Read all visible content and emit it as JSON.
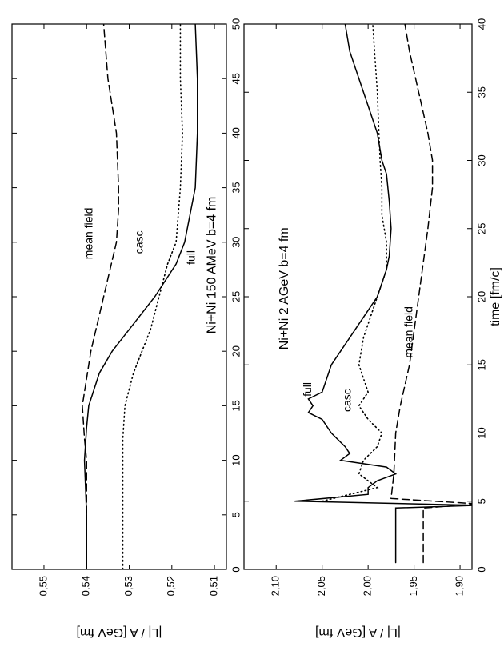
{
  "chart_data": [
    {
      "type": "line",
      "title": "Ni+Ni  150 AMeV  b=4 fm",
      "ylabel": "|L| / A   [GeV fm]",
      "xlim": [
        0,
        50
      ],
      "xticks": [
        0,
        5,
        10,
        15,
        20,
        25,
        30,
        35,
        40,
        45,
        50
      ],
      "ylim": [
        0.5072,
        0.5575
      ],
      "yticks": [
        {
          "value": 0.51,
          "label": "0,51"
        },
        {
          "value": 0.52,
          "label": "0,52"
        },
        {
          "value": 0.53,
          "label": "0,53"
        },
        {
          "value": 0.54,
          "label": "0,54"
        },
        {
          "value": 0.55,
          "label": "0,55"
        }
      ],
      "series": [
        {
          "name": "mean field",
          "color": "#000",
          "style": "dashed",
          "x": [
            0,
            5,
            10,
            12,
            15,
            20,
            25,
            30,
            33,
            35,
            40,
            45,
            50
          ],
          "values": [
            0.54,
            0.54,
            0.54,
            0.5405,
            0.541,
            0.539,
            0.536,
            0.533,
            0.5325,
            0.5325,
            0.533,
            0.535,
            0.536
          ]
        },
        {
          "name": "casc",
          "color": "#000",
          "style": "dotted",
          "x": [
            0,
            5,
            12,
            15,
            18,
            20,
            22,
            25,
            28,
            30,
            35,
            40,
            45,
            50
          ],
          "values": [
            0.5315,
            0.5315,
            0.5315,
            0.531,
            0.529,
            0.527,
            0.525,
            0.523,
            0.521,
            0.519,
            0.518,
            0.5175,
            0.518,
            0.518
          ]
        },
        {
          "name": "full",
          "color": "#000",
          "style": "solid",
          "x": [
            0,
            5,
            10,
            13,
            15,
            18,
            20,
            22,
            25,
            28,
            30,
            33,
            35,
            40,
            45,
            50
          ],
          "values": [
            0.54,
            0.54,
            0.5405,
            0.54,
            0.5395,
            0.537,
            0.534,
            0.53,
            0.524,
            0.519,
            0.517,
            0.5155,
            0.5145,
            0.514,
            0.514,
            0.5145
          ]
        }
      ]
    },
    {
      "type": "line",
      "title": "Ni+Ni  2 AGeV  b=4 fm",
      "ylabel": "|L| / A   [GeV fm]",
      "xlabel": "time  [fm/c]",
      "xlim": [
        0,
        40
      ],
      "xticks": [
        0,
        5,
        10,
        15,
        20,
        25,
        30,
        35,
        40
      ],
      "ylim": [
        1.887,
        2.135
      ],
      "yticks": [
        {
          "value": 1.9,
          "label": "1,90"
        },
        {
          "value": 1.95,
          "label": "1,95"
        },
        {
          "value": 2.0,
          "label": "2,00"
        },
        {
          "value": 2.05,
          "label": "2,05"
        },
        {
          "value": 2.1,
          "label": "2,10"
        }
      ],
      "series": [
        {
          "name": "full",
          "color": "#000",
          "style": "solid",
          "x": [
            0.5,
            4.5,
            4.7,
            5,
            5.5,
            6,
            6.5,
            7,
            7.5,
            8,
            8.5,
            9,
            10,
            11,
            11.5,
            12,
            12.5,
            13,
            14,
            15,
            16,
            17,
            18,
            19,
            20,
            21,
            22,
            23,
            25,
            27,
            29,
            30,
            32,
            34,
            36,
            38,
            40
          ],
          "values": [
            1.97,
            1.97,
            1.88,
            2.08,
            2.0,
            2.0,
            1.99,
            1.97,
            1.98,
            2.03,
            2.02,
            2.025,
            2.04,
            2.05,
            2.065,
            2.06,
            2.065,
            2.05,
            2.045,
            2.04,
            2.03,
            2.02,
            2.01,
            2.0,
            1.99,
            1.985,
            1.98,
            1.977,
            1.975,
            1.977,
            1.98,
            1.985,
            1.99,
            2.0,
            2.01,
            2.02,
            2.025
          ]
        },
        {
          "name": "casc",
          "color": "#000",
          "style": "dotted",
          "x": [
            5,
            5.5,
            6,
            6.5,
            7,
            8,
            9,
            10,
            11,
            12,
            13,
            14,
            15,
            17,
            20,
            22,
            24,
            26,
            28,
            30,
            35,
            40
          ],
          "values": [
            2.05,
            2.02,
            1.99,
            2.0,
            2.01,
            2.005,
            1.99,
            1.985,
            2.0,
            2.01,
            2.0,
            2.005,
            2.01,
            2.005,
            1.99,
            1.98,
            1.98,
            1.985,
            1.985,
            1.987,
            1.99,
            1.995
          ]
        },
        {
          "name": "mean field",
          "color": "#000",
          "style": "dashed",
          "x": [
            0.5,
            4.5,
            4.8,
            5.2,
            7,
            10,
            12,
            15,
            20,
            25,
            28,
            30,
            32,
            35,
            38,
            40
          ],
          "values": [
            1.94,
            1.94,
            1.88,
            1.975,
            1.972,
            1.97,
            1.965,
            1.955,
            1.945,
            1.935,
            1.93,
            1.93,
            1.935,
            1.945,
            1.955,
            1.96
          ]
        }
      ]
    }
  ]
}
